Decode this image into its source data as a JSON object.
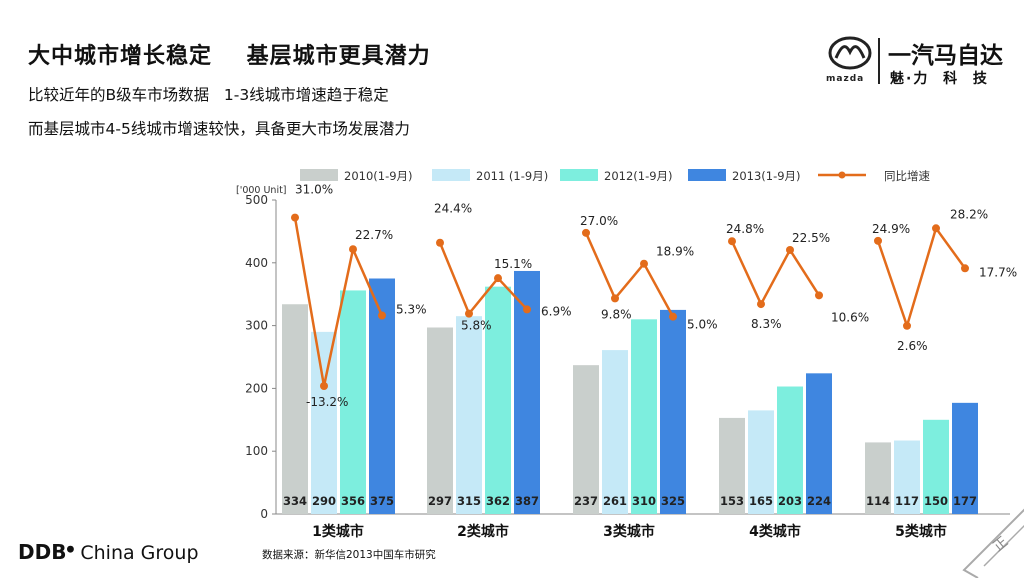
{
  "header": {
    "title": "大中城市增长稳定    基层城市更具潜力",
    "line1": "比较近年的B级车市场数据   1-3线城市增速趋于稳定",
    "line2": "而基层城市4-5线城市增速较快，具备更大市场发展潜力"
  },
  "logo": {
    "brand_small": "mazda",
    "company": "一汽马自达",
    "slogan": "魅·力  科  技"
  },
  "footer": {
    "ddb_mark": "DDB",
    "ddb_group": " China Group",
    "source": "数据来源：新华信2013中国车市研究",
    "corner_text": "正"
  },
  "colors": {
    "s2010": "#c9cfcc",
    "s2011": "#c5e9f7",
    "s2012": "#7deede",
    "s2013": "#3f86e0",
    "growth": "#e36c1b"
  },
  "chart_data": {
    "type": "bar",
    "unit_label": "['000 Unit]",
    "categories": [
      "1类城市",
      "2类城市",
      "3类城市",
      "4类城市",
      "5类城市"
    ],
    "series": [
      {
        "name": "2010(1-9月)",
        "values": [
          334,
          297,
          237,
          153,
          114
        ]
      },
      {
        "name": "2011 (1-9月)",
        "values": [
          290,
          315,
          261,
          165,
          117
        ]
      },
      {
        "name": "2012(1-9月)",
        "values": [
          356,
          362,
          310,
          203,
          150
        ]
      },
      {
        "name": "2013(1-9月)",
        "values": [
          375,
          387,
          325,
          224,
          177
        ]
      }
    ],
    "growth_series": {
      "name": "同比增速",
      "values": [
        [
          31.0,
          -13.2,
          22.7,
          5.3
        ],
        [
          24.4,
          5.8,
          15.1,
          6.9
        ],
        [
          27.0,
          9.8,
          18.9,
          5.0
        ],
        [
          24.8,
          8.3,
          22.5,
          10.6
        ],
        [
          24.9,
          2.6,
          28.2,
          17.7
        ]
      ],
      "labels": [
        [
          "31.0%",
          "-13.2%",
          "22.7%",
          "5.3%"
        ],
        [
          "24.4%",
          "5.8%",
          "15.1%",
          "6.9%"
        ],
        [
          "27.0%",
          "9.8%",
          "18.9%",
          "5.0%"
        ],
        [
          "24.8%",
          "8.3%",
          "22.5%",
          "10.6%"
        ],
        [
          "24.9%",
          "2.6%",
          "28.2%",
          "17.7%"
        ]
      ]
    },
    "y_ticks": [
      "0",
      "100",
      "200",
      "300",
      "400",
      "500"
    ],
    "ylim": [
      0,
      500
    ]
  }
}
